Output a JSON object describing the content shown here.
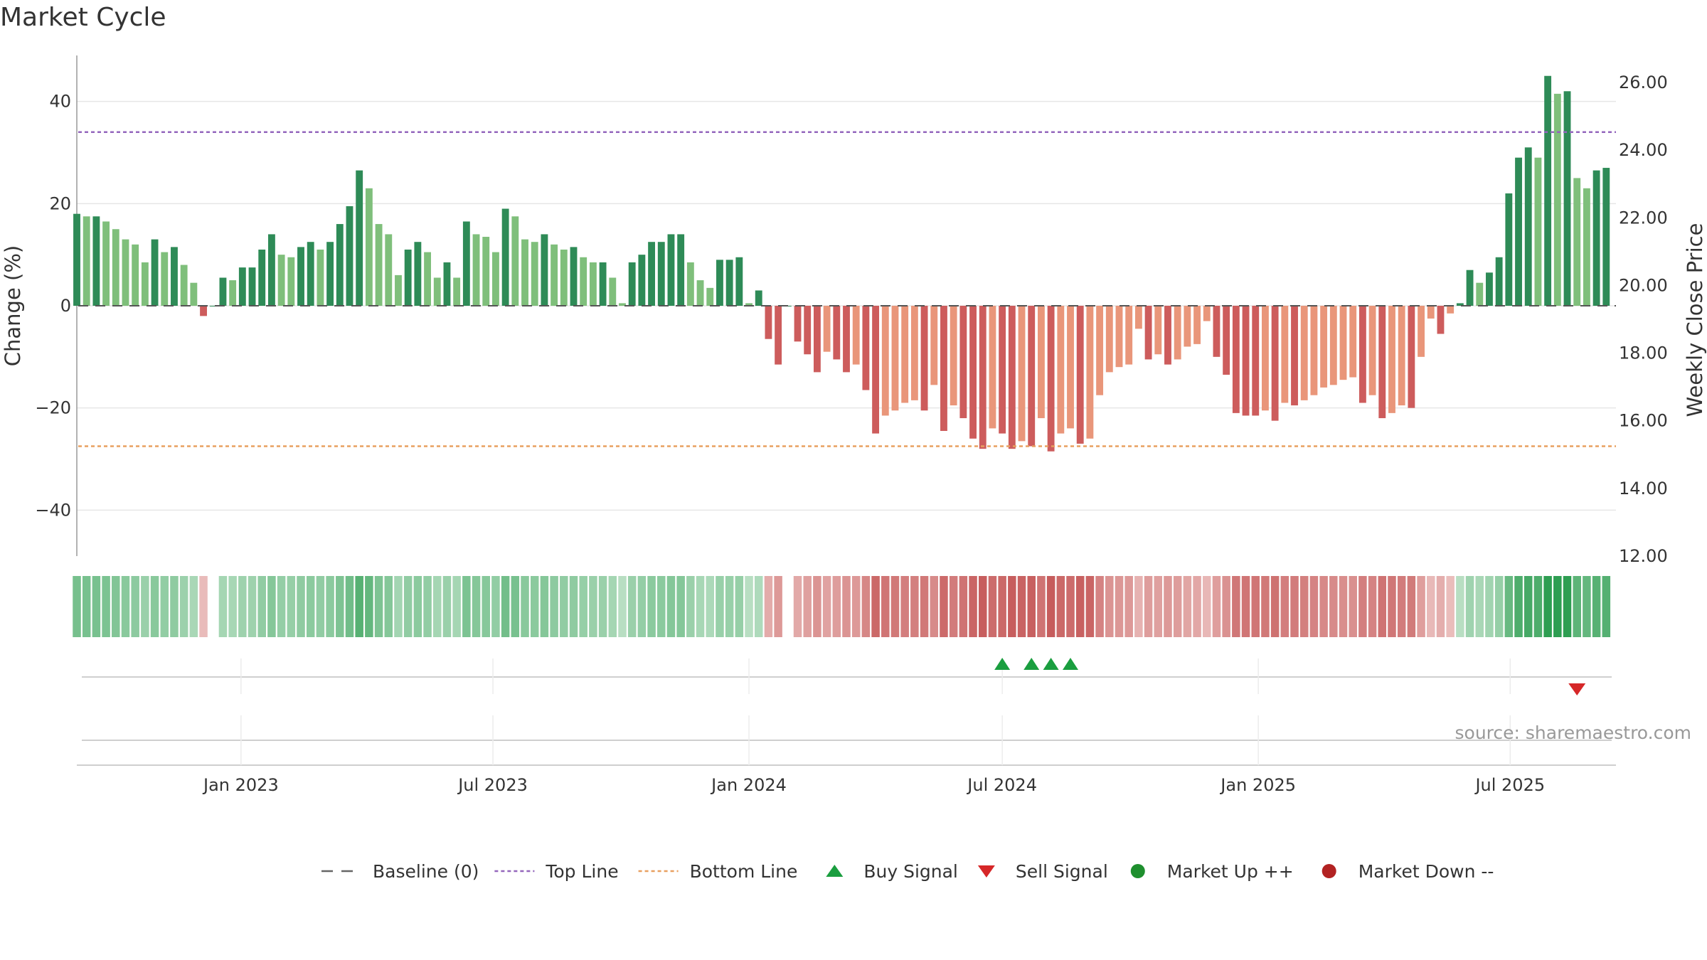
{
  "title": "Market Cycle",
  "source": "source: sharemaestro.com",
  "colors": {
    "up_strong": "#2e8b57",
    "up_light": "#7fbf7b",
    "down_strong": "#cd5c5c",
    "down_light": "#e9967a",
    "top_line": "#9467bd",
    "bottom_line": "#e8a060",
    "buy": "#1a9e3f",
    "sell": "#d62728",
    "market_up": "#1e8f2e",
    "market_down": "#b22222",
    "baseline": "#555555"
  },
  "chart_data": {
    "type": "bar",
    "ylabel": "Change (%)",
    "ylabel_right": "Weekly Close Price",
    "ylim": [
      -49,
      49
    ],
    "yticks": [
      40,
      20,
      0,
      -20,
      -40
    ],
    "ytick_labels": [
      "40",
      "20",
      "0",
      "−20",
      "−40"
    ],
    "y2lim": [
      12,
      26.8
    ],
    "y2ticks": [
      26,
      24,
      22,
      20,
      18,
      16,
      14,
      12
    ],
    "y2tick_labels": [
      "26.00",
      "24.00",
      "22.00",
      "20.00",
      "18.00",
      "16.00",
      "14.00",
      "12.00"
    ],
    "x_start": "2022-09-05",
    "x_end": "2025-09-15",
    "xticks": [
      "2023-01-01",
      "2023-07-01",
      "2024-01-01",
      "2024-07-01",
      "2025-01-01",
      "2025-07-01"
    ],
    "xtick_labels": [
      "Jan 2023",
      "Jul 2023",
      "Jan 2024",
      "Jul 2024",
      "Jan 2025",
      "Jul 2025"
    ],
    "top_line": 34,
    "bottom_line": -27.5,
    "weeks_start": "2022-09-05",
    "values": [
      18,
      17.5,
      17.5,
      16.5,
      15,
      13,
      12,
      8.5,
      13,
      10.5,
      11.5,
      8,
      4.5,
      -2,
      0,
      5.5,
      5,
      7.5,
      7.5,
      11,
      14,
      10,
      9.5,
      11.5,
      12.5,
      11,
      12.5,
      16,
      19.5,
      26.5,
      23,
      16,
      14,
      6,
      11,
      12.5,
      10.5,
      5.5,
      8.5,
      5.5,
      16.5,
      14,
      13.5,
      10.5,
      19,
      17.5,
      13,
      12.5,
      14,
      12,
      11,
      11.5,
      9.5,
      8.5,
      8.5,
      5.5,
      0.5,
      8.5,
      10,
      12.5,
      12.5,
      14,
      14,
      8.5,
      5,
      3.5,
      9,
      9,
      9.5,
      0.5,
      3,
      -6.5,
      -11.5,
      0,
      -7,
      -9.5,
      -13,
      -9,
      -10.5,
      -13,
      -11.5,
      -16.5,
      -25,
      -21.5,
      -20.5,
      -19,
      -18.5,
      -20.5,
      -15.5,
      -24.5,
      -19.5,
      -22,
      -26,
      -28,
      -24,
      -25,
      -28,
      -26.5,
      -27.5,
      -22,
      -28.5,
      -25,
      -24,
      -27,
      -26,
      -17.5,
      -13,
      -12,
      -11.5,
      -4.5,
      -10.5,
      -9.5,
      -11.5,
      -10.5,
      -8,
      -7.5,
      -3,
      -10,
      -13.5,
      -21,
      -21.5,
      -21.5,
      -20.5,
      -22.5,
      -19,
      -19.5,
      -18.5,
      -17.5,
      -16,
      -15.5,
      -14.5,
      -14,
      -19,
      -17.5,
      -22,
      -21,
      -19.5,
      -20,
      -10,
      -2.5,
      -5.5,
      -1.5,
      0.5,
      7,
      4.5,
      6.5,
      9.5,
      22,
      29,
      31,
      29,
      45,
      41.5,
      42,
      25,
      23,
      26.5,
      27
    ],
    "buy_signals": [
      "2024-07-01",
      "2024-07-22",
      "2024-08-05",
      "2024-08-19"
    ],
    "sell_signals": [
      "2025-08-18"
    ],
    "legend": [
      "Baseline (0)",
      "Top Line",
      "Bottom Line",
      "Buy Signal",
      "Sell Signal",
      "Market Up ++",
      "Market Down --"
    ]
  }
}
